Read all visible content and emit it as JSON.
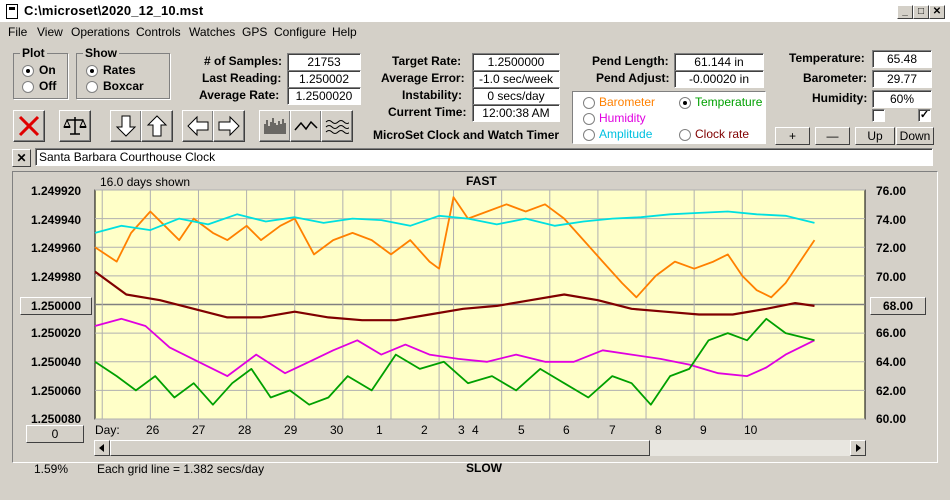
{
  "window": {
    "title": "C:\\microset\\2020_12_10.mst"
  },
  "menu": [
    "File",
    "View",
    "Operations",
    "Controls",
    "Watches",
    "GPS",
    "Configure",
    "Help"
  ],
  "plot_group": {
    "title": "Plot",
    "options": [
      "On",
      "Off"
    ],
    "selected": "On"
  },
  "show_group": {
    "title": "Show",
    "options": [
      "Rates",
      "Boxcar"
    ],
    "selected": "Rates"
  },
  "stats": {
    "samples_label": "# of Samples:",
    "samples": "21753",
    "last_reading_label": "Last Reading:",
    "last_reading": "1.250002",
    "average_rate_label": "Average Rate:",
    "average_rate": "1.2500020",
    "target_rate_label": "Target Rate:",
    "target_rate": "1.2500000",
    "average_error_label": "Average Error:",
    "average_error": "-1.0 sec/week",
    "instability_label": "Instability:",
    "instability": "0 secs/day",
    "current_time_label": "Current Time:",
    "current_time": "12:00:38 AM",
    "pend_length_label": "Pend Length:",
    "pend_length": "61.144 in",
    "pend_adjust_label": "Pend Adjust:",
    "pend_adjust": "-0.00020 in",
    "temperature_label": "Temperature:",
    "temperature": "65.48",
    "barometer_label": "Barometer:",
    "barometer": "29.77",
    "humidity_label": "Humidity:",
    "humidity": "60%"
  },
  "app_caption": "MicroSet Clock and Watch Timer",
  "legend": {
    "items": [
      {
        "label": "Barometer",
        "color": "#FF8000",
        "selected": false
      },
      {
        "label": "Temperature",
        "color": "#00A000",
        "selected": true
      },
      {
        "label": "Humidity",
        "color": "#E000E0",
        "selected": false
      },
      {
        "label": "Clock rate",
        "color": "#800000",
        "selected": false
      },
      {
        "label": "Amplitude",
        "color": "#00C0E0",
        "selected": false
      }
    ]
  },
  "adjust_buttons": [
    "+",
    "—",
    "Up",
    "Down"
  ],
  "clock_name": "Santa Barbara Courthouse Clock",
  "close_mark": "✕",
  "chart": {
    "days_shown": "16.0 days shown",
    "top_label": "FAST",
    "bottom_label": "SLOW",
    "grid_note": "Each grid line = 1.382 secs/day",
    "percent": "1.59%",
    "left_button": "1.250000",
    "right_button": "68.00",
    "zero_button": "0",
    "day_label": "Day:"
  },
  "chart_data": {
    "type": "line",
    "left_axis": {
      "ticks": [
        "1.249920",
        "1.249940",
        "1.249960",
        "1.249980",
        "1.250000",
        "1.250020",
        "1.250040",
        "1.250060",
        "1.250080"
      ],
      "range": [
        1.24992,
        1.25008
      ],
      "inverted": true
    },
    "right_axis": {
      "ticks": [
        "76.00",
        "74.00",
        "72.00",
        "70.00",
        "68.00",
        "66.00",
        "64.00",
        "62.00",
        "60.00"
      ],
      "range": [
        60,
        76
      ]
    },
    "x_ticks": [
      "26",
      "27",
      "28",
      "29",
      "30",
      "1",
      "2",
      "3",
      "4",
      "5",
      "6",
      "7",
      "8",
      "9",
      "10"
    ],
    "x_range": [
      25.85,
      41.85
    ],
    "x_tick_values": [
      26,
      27,
      28,
      29,
      30,
      31,
      32,
      33,
      33.3,
      34.3,
      35.3,
      36.3,
      37.3,
      38.3,
      39.3
    ],
    "grid": true,
    "background": "#FFFFC8",
    "series": [
      {
        "name": "Barometer",
        "color": "#FF8000",
        "axis": "right",
        "x": [
          25.85,
          26.3,
          26.6,
          27.0,
          27.3,
          27.6,
          27.9,
          28.3,
          28.6,
          29.0,
          29.3,
          29.7,
          30.0,
          30.4,
          30.8,
          31.2,
          31.6,
          32.0,
          32.4,
          32.8,
          33.0,
          33.3,
          33.6,
          34.0,
          34.4,
          34.8,
          35.2,
          35.6,
          36.0,
          36.4,
          36.8,
          37.1,
          37.5,
          37.9,
          38.3,
          38.7,
          39.0,
          39.3,
          39.6,
          39.9,
          40.2,
          40.5,
          40.8
        ],
        "y": [
          72.0,
          71.0,
          73.0,
          74.5,
          73.5,
          72.5,
          74.0,
          73.0,
          72.5,
          73.5,
          72.5,
          73.5,
          74.0,
          71.5,
          72.5,
          73.0,
          72.5,
          71.5,
          72.5,
          71.0,
          70.5,
          75.5,
          74.0,
          74.5,
          75.0,
          74.5,
          75.0,
          74.0,
          72.5,
          71.0,
          69.5,
          68.5,
          70.0,
          71.0,
          70.5,
          71.0,
          71.5,
          70.0,
          69.0,
          68.5,
          69.5,
          71.0,
          72.5
        ]
      },
      {
        "name": "Amplitude",
        "color": "#00E0E0",
        "axis": "right",
        "x": [
          25.85,
          26.4,
          27.0,
          27.6,
          28.2,
          28.8,
          29.4,
          30.0,
          30.6,
          31.2,
          31.8,
          32.4,
          33.0,
          33.6,
          34.2,
          34.8,
          35.4,
          36.0,
          36.6,
          37.2,
          37.8,
          38.4,
          39.0,
          39.6,
          40.2,
          40.8
        ],
        "y": [
          73.0,
          73.5,
          73.2,
          74.0,
          73.6,
          74.3,
          73.8,
          74.1,
          73.7,
          74.0,
          73.9,
          73.5,
          74.2,
          74.0,
          73.6,
          74.0,
          73.5,
          73.8,
          74.0,
          74.1,
          74.3,
          74.4,
          74.5,
          74.3,
          74.2,
          73.7
        ]
      },
      {
        "name": "Clock rate",
        "color": "#800000",
        "axis": "left",
        "x": [
          25.85,
          26.5,
          27.2,
          27.9,
          28.6,
          29.3,
          30.0,
          30.7,
          31.4,
          32.1,
          32.8,
          33.5,
          34.2,
          34.9,
          35.6,
          36.3,
          37.0,
          37.7,
          38.4,
          39.1,
          39.8,
          40.4,
          40.8
        ],
        "y": [
          1.249977,
          1.249993,
          1.249997,
          1.250003,
          1.250009,
          1.250009,
          1.250005,
          1.250009,
          1.250011,
          1.250011,
          1.250007,
          1.250003,
          1.250001,
          1.249997,
          1.249993,
          1.249997,
          1.250003,
          1.250005,
          1.250007,
          1.250007,
          1.250003,
          1.249999,
          1.250001
        ]
      },
      {
        "name": "Humidity",
        "color": "#E000E0",
        "axis": "right",
        "x": [
          25.85,
          26.4,
          26.9,
          27.4,
          28.0,
          28.6,
          29.2,
          29.8,
          30.3,
          30.8,
          31.3,
          31.8,
          32.3,
          32.8,
          33.4,
          34.0,
          34.6,
          35.2,
          35.8,
          36.4,
          37.0,
          37.6,
          38.2,
          38.8,
          39.4,
          39.8,
          40.2,
          40.8
        ],
        "y": [
          66.5,
          67.0,
          66.5,
          65.0,
          64.0,
          63.0,
          64.5,
          63.2,
          64.0,
          64.8,
          65.5,
          64.5,
          65.2,
          64.5,
          64.2,
          64.0,
          64.5,
          64.0,
          64.0,
          64.8,
          64.5,
          64.2,
          63.8,
          63.2,
          63.0,
          63.6,
          64.5,
          65.5
        ]
      },
      {
        "name": "Temperature",
        "color": "#00A000",
        "axis": "right",
        "x": [
          25.85,
          26.3,
          26.7,
          27.1,
          27.5,
          27.9,
          28.3,
          28.7,
          29.1,
          29.5,
          29.9,
          30.3,
          30.7,
          31.1,
          31.6,
          32.1,
          32.6,
          33.1,
          33.6,
          34.1,
          34.6,
          35.1,
          35.6,
          36.1,
          36.6,
          37.0,
          37.4,
          37.8,
          38.2,
          38.6,
          39.0,
          39.4,
          39.8,
          40.2,
          40.8
        ],
        "y": [
          64.0,
          63.0,
          62.0,
          63.0,
          61.5,
          62.5,
          61.0,
          62.5,
          63.5,
          61.5,
          62.0,
          61.0,
          61.5,
          63.0,
          62.0,
          64.5,
          63.5,
          64.0,
          62.5,
          63.0,
          62.0,
          63.5,
          62.5,
          61.5,
          63.0,
          62.5,
          61.0,
          63.0,
          63.5,
          65.5,
          66.0,
          65.5,
          67.0,
          66.0,
          65.5
        ]
      }
    ]
  }
}
